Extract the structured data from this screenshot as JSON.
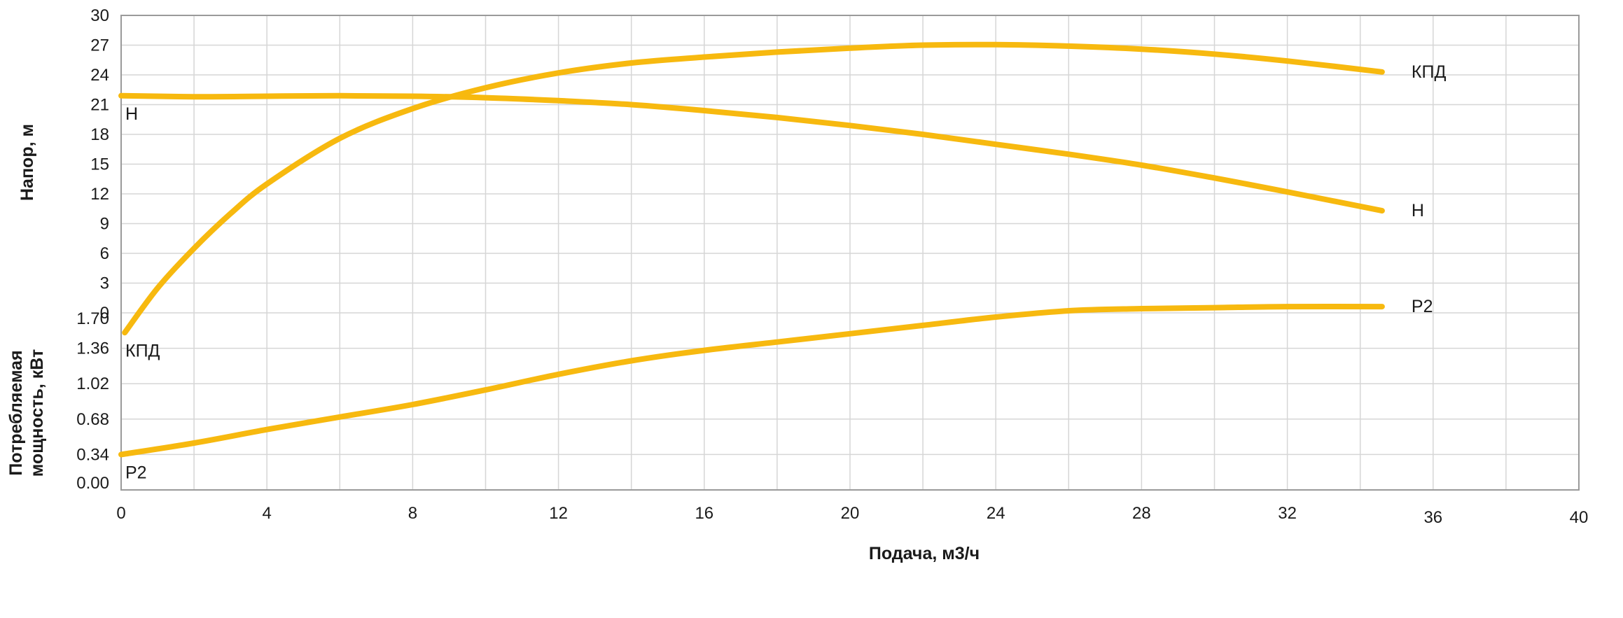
{
  "chart_data": {
    "type": "line",
    "xlabel": "Подача, м3/ч",
    "x_ticks": [
      "0",
      "4",
      "8",
      "12",
      "16",
      "20",
      "24",
      "28",
      "32",
      "36",
      "40"
    ],
    "xlim": [
      0,
      40
    ],
    "head_axis": {
      "label": "Напор, м",
      "ticks": [
        "0",
        "3",
        "6",
        "9",
        "12",
        "15",
        "18",
        "21",
        "24",
        "27",
        "30"
      ],
      "ylim": [
        0,
        30
      ]
    },
    "power_axis": {
      "label_lines": [
        "Потребляемая",
        "мощность, кВт"
      ],
      "ticks": [
        "0.00",
        "0.34",
        "0.68",
        "1.02",
        "1.36",
        "1.70"
      ],
      "ylim": [
        0,
        1.7
      ]
    },
    "grid": true,
    "curve_color": "#f7b90f",
    "series": [
      {
        "name": "H",
        "end_label": "H",
        "start_label": "H",
        "axis": "head",
        "x": [
          0,
          2,
          4,
          6,
          8,
          10,
          12,
          14,
          16,
          18,
          20,
          22,
          24,
          26,
          28,
          30,
          32,
          34.6
        ],
        "y": [
          21.9,
          21.8,
          21.85,
          21.9,
          21.85,
          21.7,
          21.4,
          21.0,
          20.4,
          19.7,
          18.9,
          18.0,
          17.0,
          16.0,
          14.9,
          13.6,
          12.2,
          10.3
        ]
      },
      {
        "name": "КПД",
        "end_label": "КПД",
        "start_label": "КПД",
        "axis": "head",
        "x": [
          0.1,
          1,
          2,
          3,
          4,
          6,
          8,
          10,
          12,
          14,
          16,
          18,
          20,
          22,
          24,
          26,
          28,
          30,
          32,
          34.6
        ],
        "y": [
          -2.0,
          2.5,
          6.5,
          10.0,
          13.0,
          17.6,
          20.6,
          22.7,
          24.2,
          25.2,
          25.8,
          26.3,
          26.7,
          27.0,
          27.05,
          26.9,
          26.6,
          26.1,
          25.4,
          24.3
        ]
      },
      {
        "name": "P2",
        "end_label": "P2",
        "start_label": "P2",
        "axis": "power",
        "x": [
          0,
          2,
          4,
          6,
          8,
          10,
          12,
          14,
          16,
          18,
          20,
          22,
          24,
          26,
          28,
          30,
          32,
          34.6
        ],
        "y": [
          0.34,
          0.45,
          0.58,
          0.7,
          0.82,
          0.96,
          1.11,
          1.24,
          1.34,
          1.42,
          1.5,
          1.58,
          1.66,
          1.72,
          1.74,
          1.75,
          1.76,
          1.76
        ]
      }
    ]
  }
}
